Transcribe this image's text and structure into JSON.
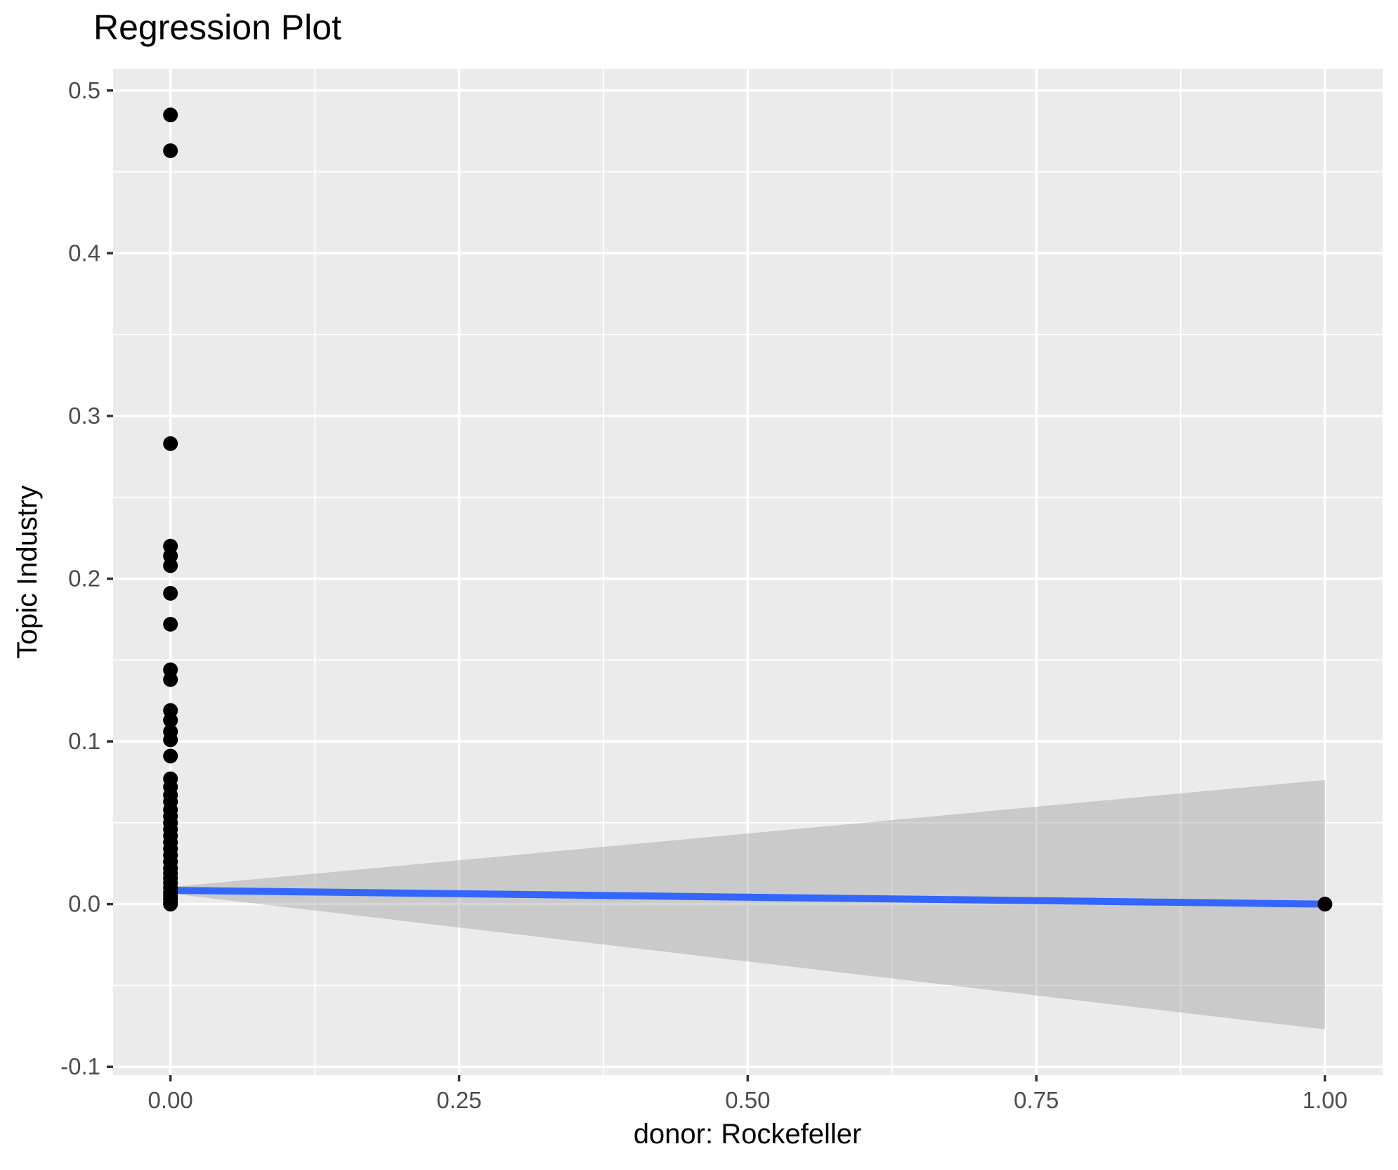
{
  "page": {
    "background": "#FFFFFF"
  },
  "chart_data": {
    "type": "scatter",
    "title": "Regression Plot",
    "xlabel": "donor: Rockefeller",
    "ylabel": "Topic Industry",
    "legend": "none",
    "grid": "major+minor",
    "xlim": [
      -0.0497,
      1.0499
    ],
    "ylim": [
      -0.1051,
      0.5133
    ],
    "x_major_ticks": [
      0.0,
      0.25,
      0.5,
      0.75,
      1.0
    ],
    "x_tick_labels": [
      "0.00",
      "0.25",
      "0.50",
      "0.75",
      "1.00"
    ],
    "x_minor_ticks": [
      0.125,
      0.375,
      0.625,
      0.875
    ],
    "y_major_ticks": [
      -0.1,
      0.0,
      0.1,
      0.2,
      0.3,
      0.4,
      0.5
    ],
    "y_tick_labels": [
      "-0.1",
      "0.0",
      "0.1",
      "0.2",
      "0.3",
      "0.4",
      "0.5"
    ],
    "y_minor_ticks": [
      -0.05,
      0.05,
      0.15,
      0.25,
      0.35,
      0.45
    ],
    "points": [
      {
        "x": 0,
        "y": 0.485
      },
      {
        "x": 0,
        "y": 0.463
      },
      {
        "x": 0,
        "y": 0.283
      },
      {
        "x": 0,
        "y": 0.22
      },
      {
        "x": 0,
        "y": 0.214
      },
      {
        "x": 0,
        "y": 0.208
      },
      {
        "x": 0,
        "y": 0.191
      },
      {
        "x": 0,
        "y": 0.172
      },
      {
        "x": 0,
        "y": 0.144
      },
      {
        "x": 0,
        "y": 0.138
      },
      {
        "x": 0,
        "y": 0.119
      },
      {
        "x": 0,
        "y": 0.113
      },
      {
        "x": 0,
        "y": 0.106
      },
      {
        "x": 0,
        "y": 0.101
      },
      {
        "x": 0,
        "y": 0.091
      },
      {
        "x": 0,
        "y": 0.077
      },
      {
        "x": 0,
        "y": 0.072
      },
      {
        "x": 0,
        "y": 0.067
      },
      {
        "x": 0,
        "y": 0.063
      },
      {
        "x": 0,
        "y": 0.058
      },
      {
        "x": 0,
        "y": 0.054
      },
      {
        "x": 0,
        "y": 0.05
      },
      {
        "x": 0,
        "y": 0.046
      },
      {
        "x": 0,
        "y": 0.042
      },
      {
        "x": 0,
        "y": 0.038
      },
      {
        "x": 0,
        "y": 0.034
      },
      {
        "x": 0,
        "y": 0.03
      },
      {
        "x": 0,
        "y": 0.026
      },
      {
        "x": 0,
        "y": 0.022
      },
      {
        "x": 0,
        "y": 0.019
      },
      {
        "x": 0,
        "y": 0.016
      },
      {
        "x": 0,
        "y": 0.013
      },
      {
        "x": 0,
        "y": 0.01
      },
      {
        "x": 0,
        "y": 0.007
      },
      {
        "x": 0,
        "y": 0.005
      },
      {
        "x": 0,
        "y": 0.003
      },
      {
        "x": 0,
        "y": 0.001
      },
      {
        "x": 0,
        "y": 0.0
      },
      {
        "x": 1,
        "y": 0.0
      }
    ],
    "regression_line": {
      "x": [
        0,
        1
      ],
      "y": [
        0.0085,
        0.0
      ]
    },
    "confidence_band": {
      "x": [
        0,
        1
      ],
      "upper": [
        0.0105,
        0.0763
      ],
      "lower": [
        0.0065,
        -0.077
      ]
    },
    "style": {
      "panel_bg": "#EBEBEB",
      "grid_color": "#FFFFFF",
      "point_color": "#000000",
      "line_color": "#3366FF",
      "band_color": "rgba(153,153,153,0.4)",
      "tick_mark_color": "#333333",
      "tick_label_color": "#4D4D4D",
      "text_color": "#000000"
    }
  }
}
